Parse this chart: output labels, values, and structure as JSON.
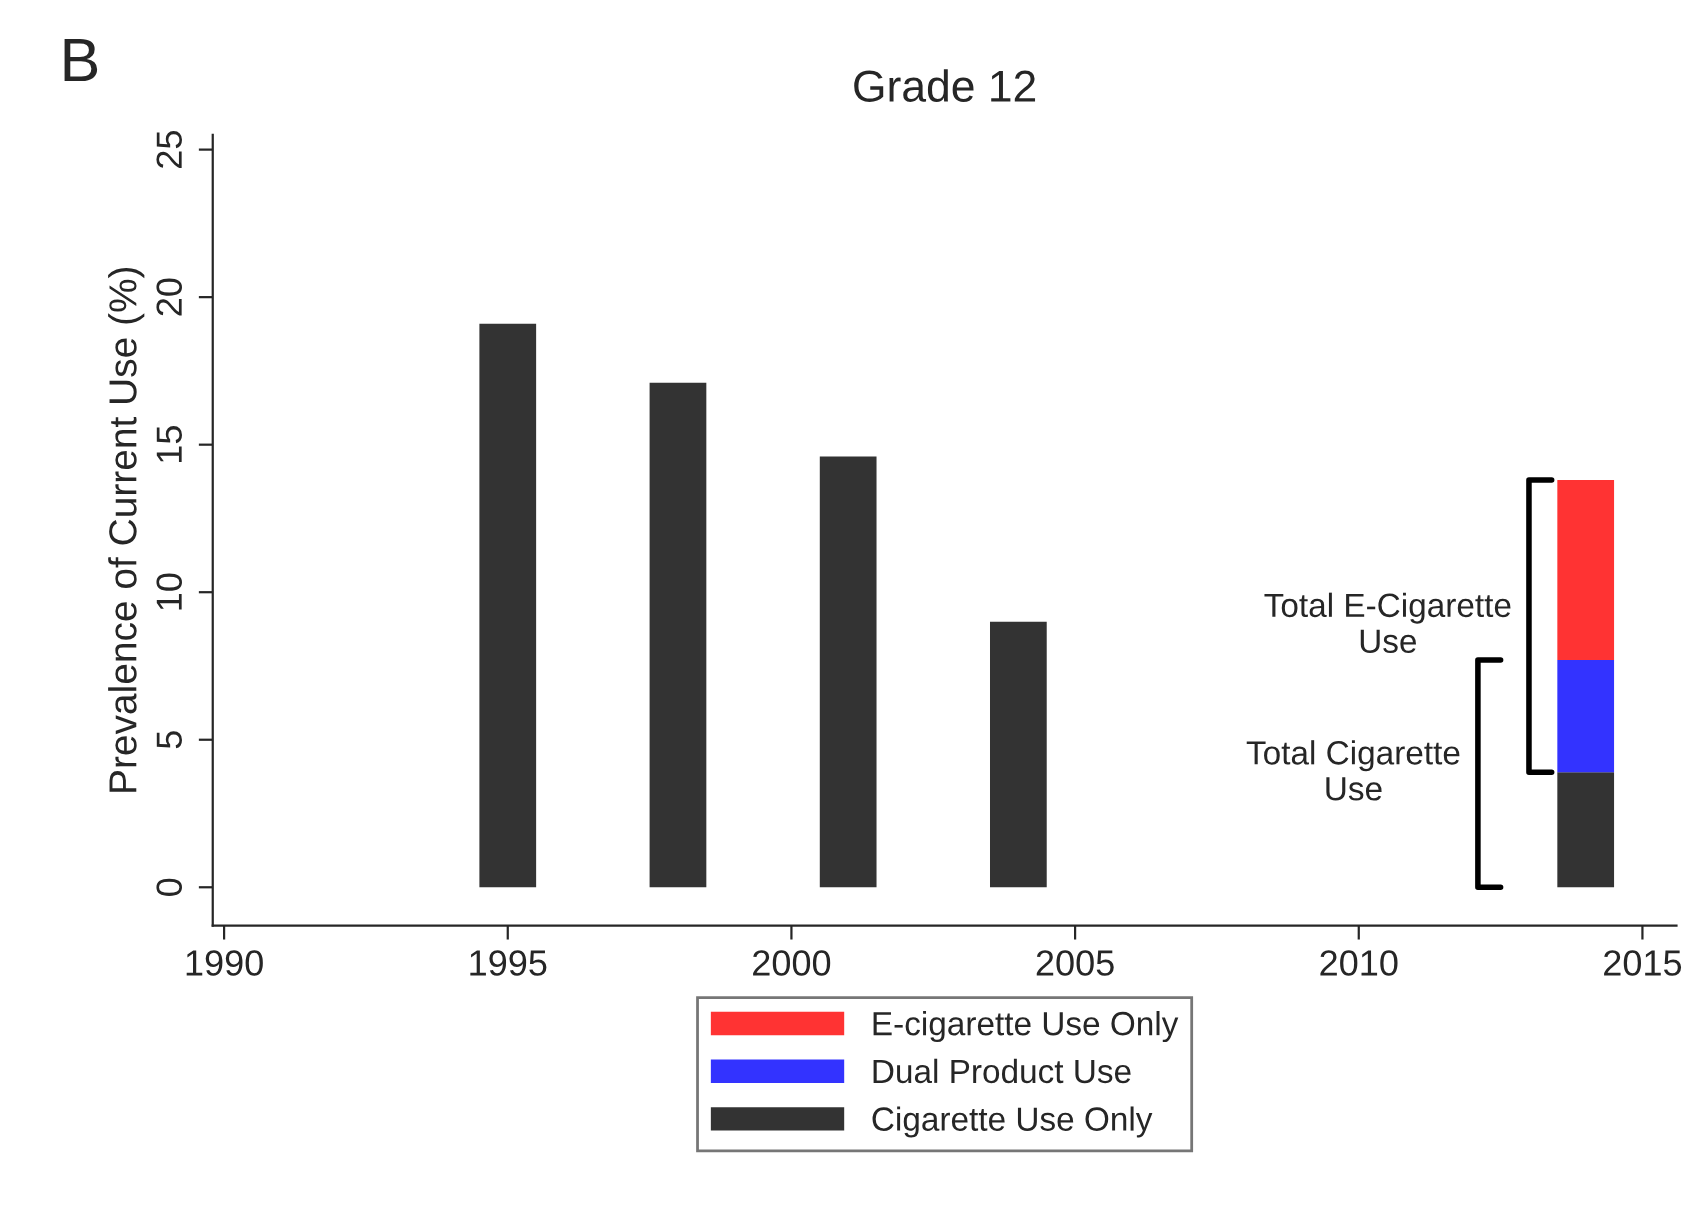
{
  "chart_data": {
    "type": "bar",
    "title": "Grade 12",
    "ylabel": "Prevalence of Current Use (%)",
    "x": [
      1995,
      1998,
      2001,
      2004,
      2014
    ],
    "stacked": true,
    "series": [
      {
        "name": "Cigarette Use Only",
        "color": "#333333",
        "values": [
          19.1,
          17.1,
          14.6,
          9.0,
          3.9
        ]
      },
      {
        "name": "Dual Product Use",
        "color": "#3333ff",
        "values": [
          null,
          null,
          null,
          null,
          3.8
        ]
      },
      {
        "name": "E-cigarette Use Only",
        "color": "#ff3333",
        "values": [
          null,
          null,
          null,
          null,
          6.1
        ]
      }
    ],
    "xlim": [
      1989.8,
      2015.6
    ],
    "xticks": [
      1990,
      1995,
      2000,
      2005,
      2010,
      2015
    ],
    "ylim": [
      -1.3,
      25.5
    ],
    "yticks": [
      0,
      5,
      10,
      15,
      20,
      25
    ],
    "grid": false,
    "legend": "bottom",
    "annotations": [
      "B",
      "Total E-Cigarette\nUse",
      "Total Cigarette\nUse"
    ]
  }
}
